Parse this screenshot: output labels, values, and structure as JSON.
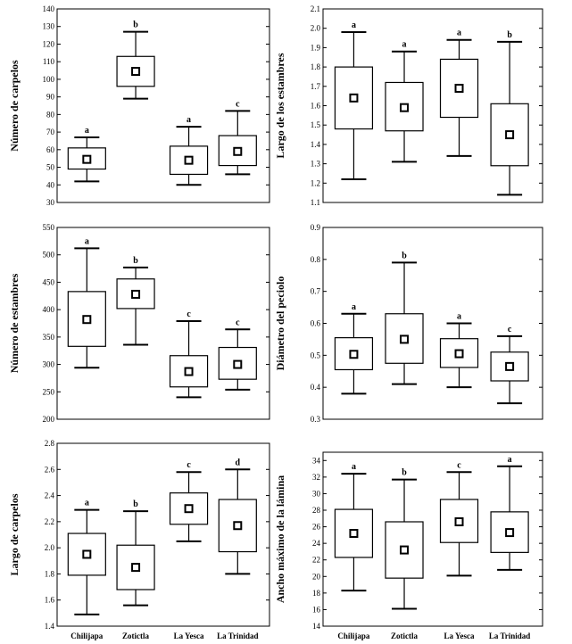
{
  "chart_data": [
    {
      "type": "box",
      "ylabel": "Número de carpelos",
      "ylim": [
        30,
        140
      ],
      "yticks": [
        30,
        40,
        50,
        60,
        70,
        80,
        90,
        100,
        110,
        120,
        130,
        140
      ],
      "ytick_labels": [
        "30",
        "40",
        "50",
        "60",
        "70",
        "80",
        "90",
        "100",
        "110",
        "120",
        "130",
        "140"
      ],
      "categories": [
        "Chilijapa",
        "Zotictla",
        "La Yesca",
        "La Trinidad"
      ],
      "show_xlabels": false,
      "boxes": [
        {
          "min": 42,
          "q1": 49,
          "median": 54.5,
          "q3": 61,
          "max": 67,
          "letter": "a"
        },
        {
          "min": 89,
          "q1": 96,
          "median": 104.5,
          "q3": 113,
          "max": 127,
          "letter": "b"
        },
        {
          "min": 40,
          "q1": 46,
          "median": 54,
          "q3": 62,
          "max": 73,
          "letter": "a"
        },
        {
          "min": 46,
          "q1": 51,
          "median": 59,
          "q3": 68,
          "max": 82,
          "letter": "c"
        }
      ]
    },
    {
      "type": "box",
      "ylabel": "Largo de los estambres",
      "ylim": [
        1.1,
        2.1
      ],
      "yticks": [
        1.1,
        1.2,
        1.3,
        1.4,
        1.5,
        1.6,
        1.7,
        1.8,
        1.9,
        2.0,
        2.1
      ],
      "ytick_labels": [
        "1.1",
        "1.2",
        "1.3",
        "1.4",
        "1.5",
        "1.6",
        "1.7",
        "1.8",
        "1.9",
        "2.0",
        "2.1"
      ],
      "categories": [
        "Chilijapa",
        "Zotictla",
        "La Yesca",
        "La Trinidad"
      ],
      "show_xlabels": false,
      "boxes": [
        {
          "min": 1.22,
          "q1": 1.48,
          "median": 1.64,
          "q3": 1.8,
          "max": 1.98,
          "letter": "a"
        },
        {
          "min": 1.31,
          "q1": 1.47,
          "median": 1.59,
          "q3": 1.72,
          "max": 1.88,
          "letter": "a"
        },
        {
          "min": 1.34,
          "q1": 1.54,
          "median": 1.69,
          "q3": 1.84,
          "max": 1.94,
          "letter": "a"
        },
        {
          "min": 1.14,
          "q1": 1.29,
          "median": 1.45,
          "q3": 1.61,
          "max": 1.93,
          "letter": "b"
        }
      ]
    },
    {
      "type": "box",
      "ylabel": "Número de estambres",
      "ylim": [
        200,
        550
      ],
      "yticks": [
        200,
        250,
        300,
        350,
        400,
        450,
        500,
        550
      ],
      "ytick_labels": [
        "200",
        "250",
        "300",
        "350",
        "400",
        "450",
        "500",
        "550"
      ],
      "categories": [
        "Chilijapa",
        "Zotictla",
        "La Yesca",
        "La Trinidad"
      ],
      "show_xlabels": false,
      "boxes": [
        {
          "min": 294,
          "q1": 333,
          "median": 382,
          "q3": 433,
          "max": 512,
          "letter": "a"
        },
        {
          "min": 336,
          "q1": 402,
          "median": 428,
          "q3": 456,
          "max": 477,
          "letter": "b"
        },
        {
          "min": 240,
          "q1": 259,
          "median": 287,
          "q3": 316,
          "max": 379,
          "letter": "c"
        },
        {
          "min": 254,
          "q1": 273,
          "median": 300,
          "q3": 331,
          "max": 364,
          "letter": "c"
        }
      ]
    },
    {
      "type": "box",
      "ylabel": "Diámetro del peciolo",
      "ylim": [
        0.3,
        0.9
      ],
      "yticks": [
        0.3,
        0.4,
        0.5,
        0.6,
        0.7,
        0.8,
        0.9
      ],
      "ytick_labels": [
        "0.3",
        "0.4",
        "0.5",
        "0.6",
        "0.7",
        "0.8",
        "0.9"
      ],
      "categories": [
        "Chilijapa",
        "Zotictla",
        "La Yesca",
        "La Trinidad"
      ],
      "show_xlabels": false,
      "boxes": [
        {
          "min": 0.38,
          "q1": 0.455,
          "median": 0.503,
          "q3": 0.555,
          "max": 0.63,
          "letter": "a"
        },
        {
          "min": 0.41,
          "q1": 0.475,
          "median": 0.55,
          "q3": 0.63,
          "max": 0.79,
          "letter": "b"
        },
        {
          "min": 0.4,
          "q1": 0.462,
          "median": 0.505,
          "q3": 0.552,
          "max": 0.6,
          "letter": "a"
        },
        {
          "min": 0.35,
          "q1": 0.42,
          "median": 0.465,
          "q3": 0.51,
          "max": 0.56,
          "letter": "c"
        }
      ]
    },
    {
      "type": "box",
      "ylabel": "Largo de carpelos",
      "ylim": [
        1.4,
        2.8
      ],
      "yticks": [
        1.4,
        1.6,
        1.8,
        2.0,
        2.2,
        2.4,
        2.6,
        2.8
      ],
      "ytick_labels": [
        "1.4",
        "1.6",
        "1.8",
        "2.0",
        "2.2",
        "2.4",
        "2.6",
        "2.8"
      ],
      "categories": [
        "Chilijapa",
        "Zotictla",
        "La Yesca",
        "La Trinidad"
      ],
      "show_xlabels": true,
      "boxes": [
        {
          "min": 1.49,
          "q1": 1.79,
          "median": 1.95,
          "q3": 2.11,
          "max": 2.29,
          "letter": "a"
        },
        {
          "min": 1.56,
          "q1": 1.68,
          "median": 1.85,
          "q3": 2.02,
          "max": 2.28,
          "letter": "b"
        },
        {
          "min": 2.05,
          "q1": 2.18,
          "median": 2.3,
          "q3": 2.42,
          "max": 2.58,
          "letter": "c"
        },
        {
          "min": 1.8,
          "q1": 1.97,
          "median": 2.17,
          "q3": 2.37,
          "max": 2.6,
          "letter": "d"
        }
      ]
    },
    {
      "type": "box",
      "ylabel": "Ancho máximo de la lámina",
      "ylim": [
        14,
        35
      ],
      "yticks": [
        14,
        16,
        18,
        20,
        22,
        24,
        26,
        28,
        30,
        32,
        34
      ],
      "ytick_labels": [
        "14",
        "16",
        "18",
        "20",
        "22",
        "24",
        "26",
        "28",
        "30",
        "32",
        "34"
      ],
      "categories": [
        "Chilijapa",
        "Zotictla",
        "La Yesca",
        "La Trinidad"
      ],
      "show_xlabels": true,
      "boxes": [
        {
          "min": 18.3,
          "q1": 22.3,
          "median": 25.2,
          "q3": 28.1,
          "max": 32.4,
          "letter": "a"
        },
        {
          "min": 16.1,
          "q1": 19.8,
          "median": 23.2,
          "q3": 26.6,
          "max": 31.7,
          "letter": "b"
        },
        {
          "min": 20.1,
          "q1": 24.1,
          "median": 26.6,
          "q3": 29.3,
          "max": 32.6,
          "letter": "c"
        },
        {
          "min": 20.8,
          "q1": 22.9,
          "median": 25.3,
          "q3": 27.8,
          "max": 33.3,
          "letter": "a"
        }
      ]
    }
  ]
}
